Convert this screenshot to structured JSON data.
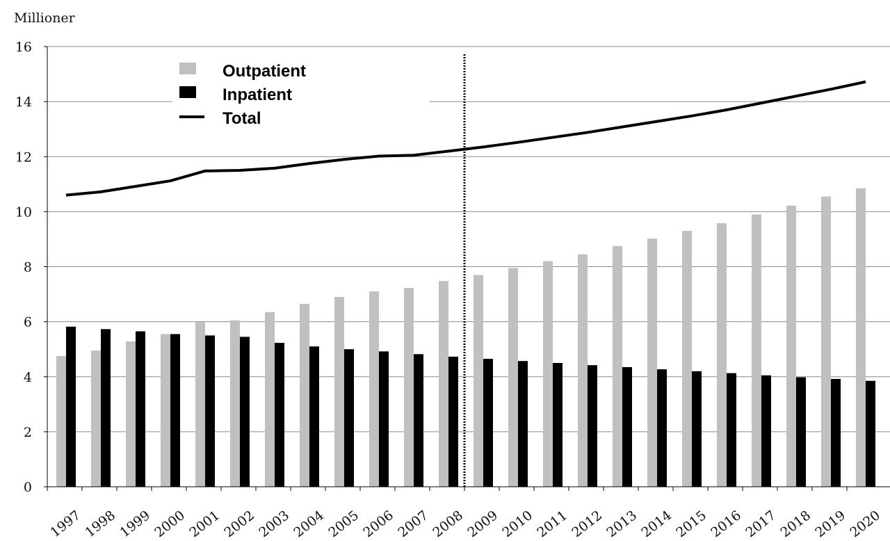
{
  "chart_data": {
    "type": "bar",
    "ylabel": "Millioner",
    "xlabel": "",
    "ylim": [
      0,
      16
    ],
    "yticks": [
      0,
      2,
      4,
      6,
      8,
      10,
      12,
      14,
      16
    ],
    "categories": [
      "1997",
      "1998",
      "1999",
      "2000",
      "2001",
      "2002",
      "2003",
      "2004",
      "2005",
      "2006",
      "2007",
      "2008",
      "2009",
      "2010",
      "2011",
      "2012",
      "2013",
      "2014",
      "2015",
      "2016",
      "2017",
      "2018",
      "2019",
      "2020"
    ],
    "series": [
      {
        "name": "Outpatient",
        "kind": "bar",
        "color": "#c0c0c0",
        "values": [
          4.75,
          4.95,
          5.28,
          5.55,
          5.98,
          6.05,
          6.35,
          6.65,
          6.9,
          7.1,
          7.23,
          7.48,
          7.7,
          7.95,
          8.2,
          8.45,
          8.75,
          9.02,
          9.3,
          9.58,
          9.9,
          10.22,
          10.55,
          10.85
        ]
      },
      {
        "name": "Inpatient",
        "kind": "bar",
        "color": "#000000",
        "values": [
          5.82,
          5.73,
          5.65,
          5.55,
          5.5,
          5.45,
          5.23,
          5.1,
          5.0,
          4.92,
          4.82,
          4.73,
          4.65,
          4.57,
          4.5,
          4.42,
          4.35,
          4.27,
          4.2,
          4.13,
          4.05,
          3.98,
          3.92,
          3.85
        ]
      },
      {
        "name": "Total",
        "kind": "line",
        "color": "#000000",
        "values": [
          10.6,
          10.72,
          10.92,
          11.12,
          11.48,
          11.5,
          11.58,
          11.75,
          11.9,
          12.02,
          12.05,
          12.2,
          12.35,
          12.52,
          12.7,
          12.88,
          13.08,
          13.28,
          13.48,
          13.7,
          13.95,
          14.2,
          14.45,
          14.72
        ]
      }
    ],
    "divider_after_category": "2008",
    "legend_position": "top-left",
    "grid": "horizontal"
  }
}
